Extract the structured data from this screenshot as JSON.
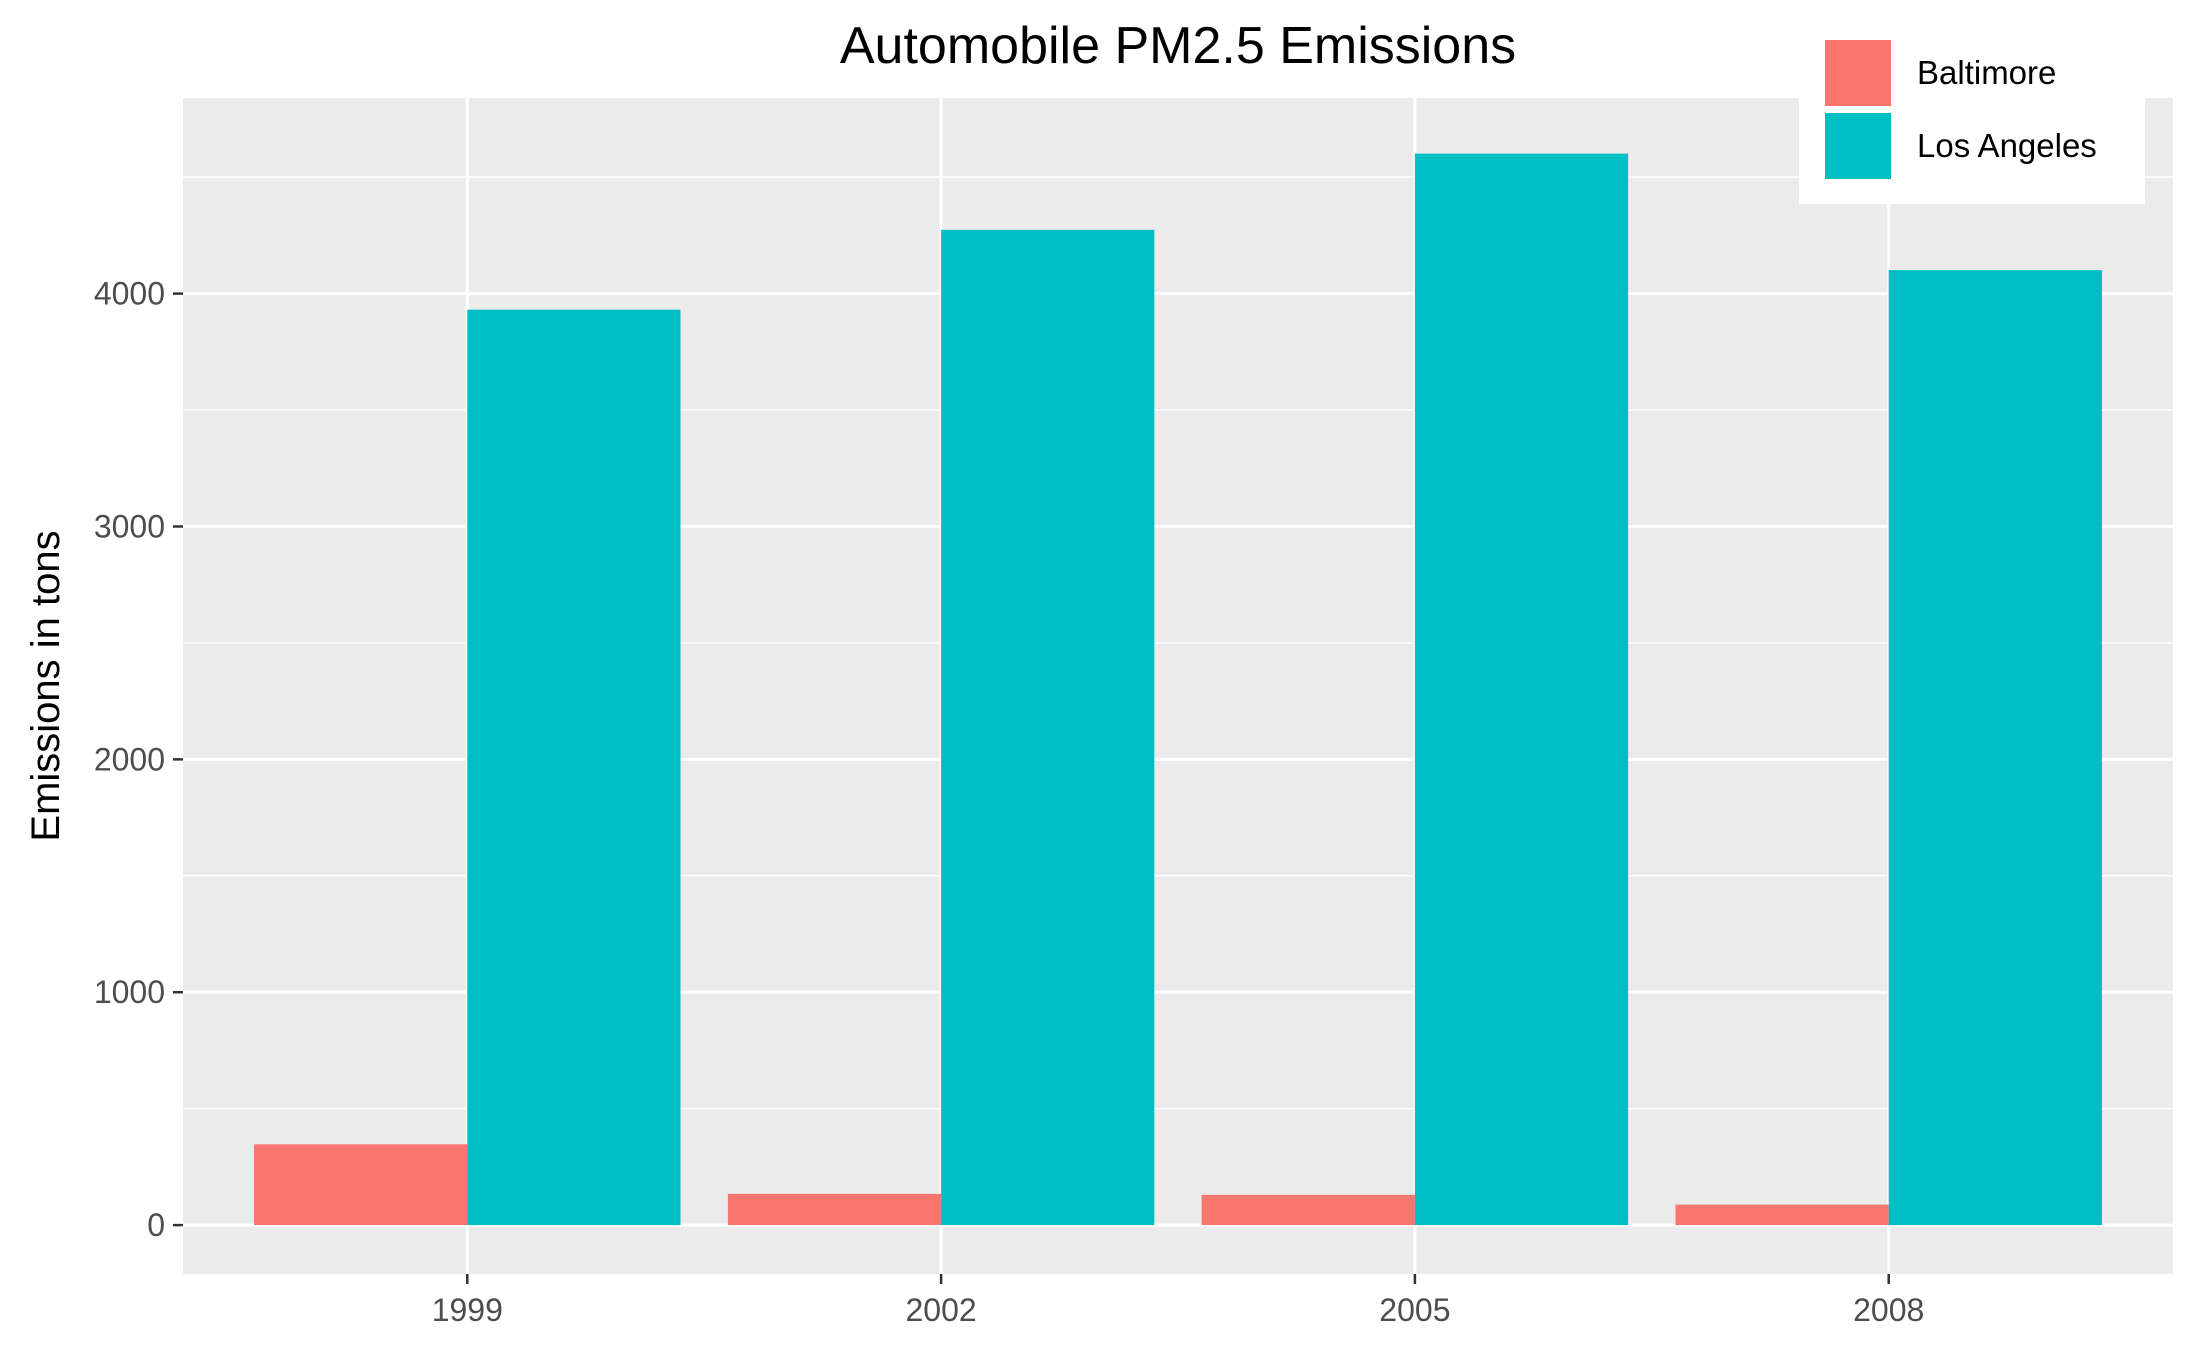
{
  "chart_data": {
    "type": "bar",
    "title": "Automobile PM2.5 Emissions",
    "xlabel": "",
    "ylabel": "Emissions in tons",
    "categories": [
      "1999",
      "2002",
      "2005",
      "2008"
    ],
    "series": [
      {
        "name": "Baltimore",
        "color": "#F8766D",
        "values": [
          347,
          134,
          130,
          88
        ]
      },
      {
        "name": "Los Angeles",
        "color": "#00BFC4",
        "values": [
          3931,
          4274,
          4601,
          4101
        ]
      }
    ],
    "ylim": [
      -210,
      4840
    ],
    "yticks": [
      0,
      1000,
      2000,
      3000,
      4000
    ],
    "grid": true,
    "legend": "top-right",
    "panel_background": "#EBEBEB",
    "gridline_color": "#FFFFFF"
  }
}
